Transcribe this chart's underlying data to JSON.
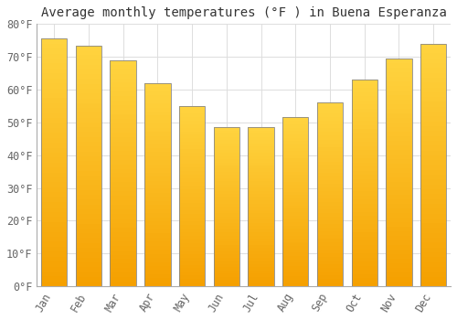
{
  "title": "Average monthly temperatures (°F ) in Buena Esperanza",
  "months": [
    "Jan",
    "Feb",
    "Mar",
    "Apr",
    "May",
    "Jun",
    "Jul",
    "Aug",
    "Sep",
    "Oct",
    "Nov",
    "Dec"
  ],
  "values": [
    75.5,
    73.5,
    69.0,
    62.0,
    55.0,
    48.5,
    48.5,
    51.5,
    56.0,
    63.0,
    69.5,
    74.0
  ],
  "bar_color_top": "#FFD966",
  "bar_color_bottom": "#F5A000",
  "bar_edge_color": "#888888",
  "background_color": "#FFFFFF",
  "plot_bg_color": "#FFFFFF",
  "grid_color": "#DDDDDD",
  "ylim": [
    0,
    80
  ],
  "yticks": [
    0,
    10,
    20,
    30,
    40,
    50,
    60,
    70,
    80
  ],
  "ylabel_suffix": "°F",
  "title_fontsize": 10,
  "tick_fontsize": 8.5,
  "tick_color": "#666666",
  "font_family": "monospace"
}
